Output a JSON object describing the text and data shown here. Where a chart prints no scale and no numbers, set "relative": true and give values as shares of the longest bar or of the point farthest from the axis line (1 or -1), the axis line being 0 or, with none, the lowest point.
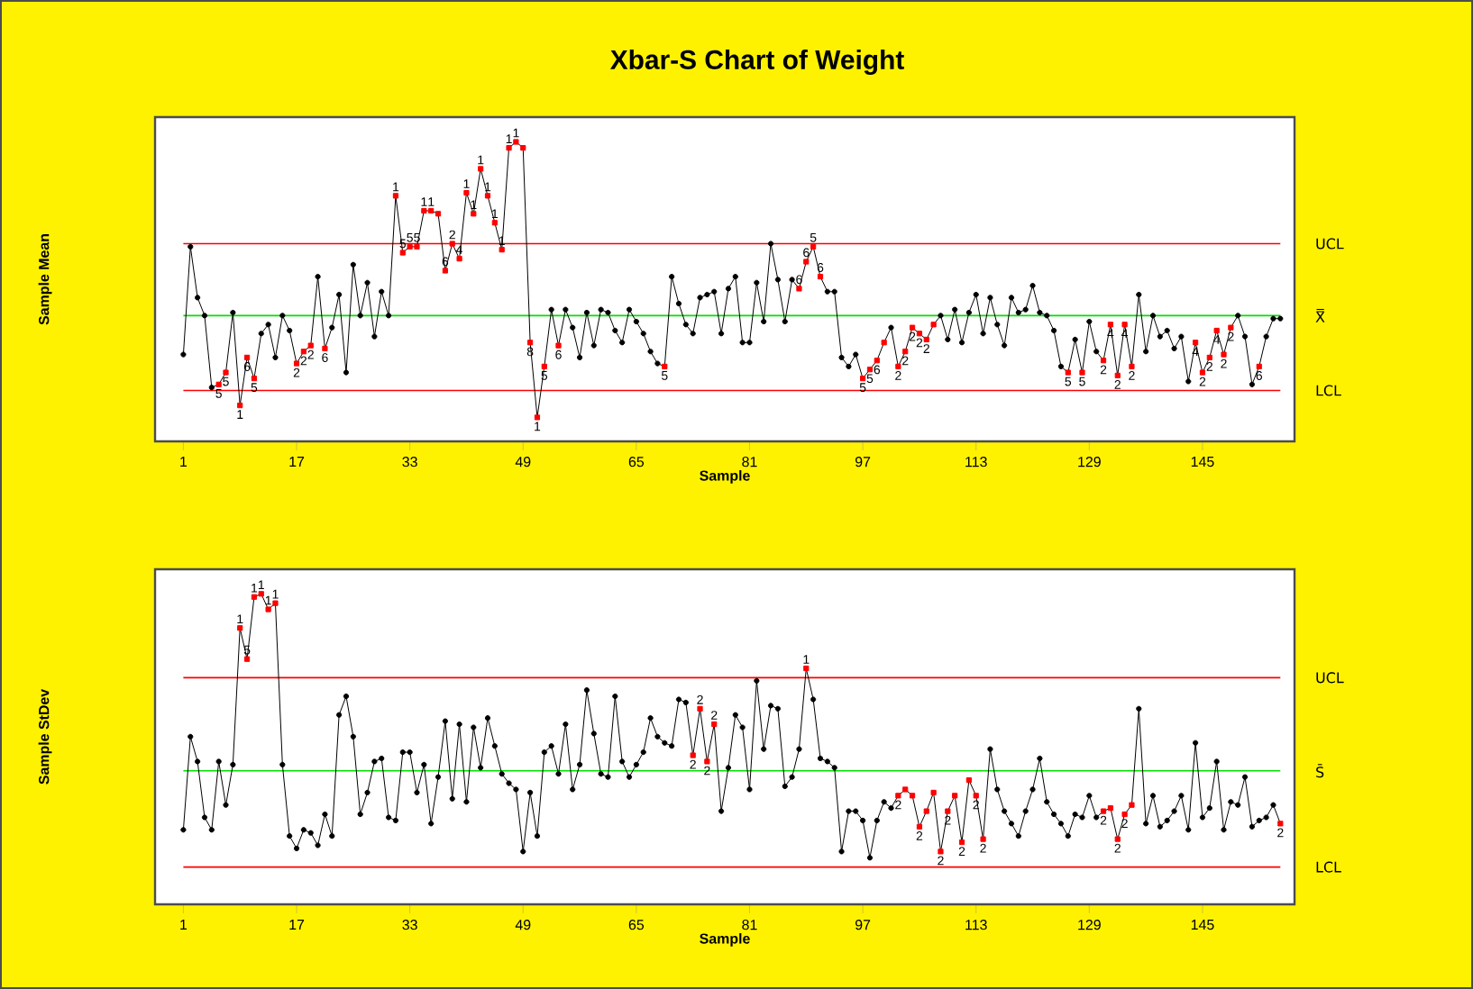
{
  "chart_data": [
    {
      "type": "line",
      "title": "Xbar-S Chart of Weight",
      "xlabel": "Sample",
      "ylabel": "Sample Mean",
      "relative": true,
      "x": [
        1,
        2,
        3,
        4,
        5,
        6,
        7,
        8,
        9,
        10,
        11,
        12,
        13,
        14,
        15,
        16,
        17,
        18,
        19,
        20,
        21,
        22,
        23,
        24,
        25,
        26,
        27,
        28,
        29,
        30,
        31,
        32,
        33,
        34,
        35,
        36,
        37,
        38,
        39,
        40,
        41,
        42,
        43,
        44,
        45,
        46,
        47,
        48,
        49,
        50,
        51,
        52,
        53,
        54,
        55,
        56,
        57,
        58,
        59,
        60,
        61,
        62,
        63,
        64,
        65,
        66,
        67,
        68,
        69,
        70,
        71,
        72,
        73,
        74,
        75,
        76,
        77,
        78,
        79,
        80,
        81,
        82,
        83,
        84,
        85,
        86,
        87,
        88,
        89,
        90,
        91,
        92,
        93,
        94,
        95,
        96,
        97,
        98,
        99,
        100,
        101,
        102,
        103,
        104,
        105,
        106,
        107,
        108,
        109,
        110,
        111,
        112,
        113,
        114,
        115,
        116,
        117,
        118,
        119,
        120,
        121,
        122,
        123,
        124,
        125,
        126,
        127,
        128,
        129,
        130,
        131,
        132,
        133,
        134,
        135,
        136,
        137,
        138,
        139,
        140,
        141,
        142,
        143,
        144,
        145,
        146,
        147,
        148,
        149,
        150,
        151,
        152,
        153,
        154,
        155,
        156
      ],
      "xlim": [
        -3,
        158
      ],
      "xticks": [
        1,
        17,
        33,
        49,
        65,
        81,
        97,
        113,
        129,
        145
      ],
      "series": [
        {
          "color": "#000000",
          "marker": "none",
          "line_style": "solid",
          "values": [
            0.29,
            0.65,
            0.48,
            0.42,
            0.18,
            0.19,
            0.23,
            0.43,
            0.12,
            0.28,
            0.21,
            0.36,
            0.39,
            0.28,
            0.42,
            0.37,
            0.26,
            0.3,
            0.32,
            0.55,
            0.31,
            0.38,
            0.49,
            0.23,
            0.59,
            0.42,
            0.53,
            0.35,
            0.5,
            0.42,
            0.82,
            0.63,
            0.65,
            0.65,
            0.77,
            0.77,
            0.76,
            0.57,
            0.66,
            0.61,
            0.83,
            0.76,
            0.91,
            0.82,
            0.73,
            0.64,
            0.98,
            1.0,
            0.98,
            0.33,
            0.08,
            0.25,
            0.44,
            0.32,
            0.44,
            0.38,
            0.28,
            0.43,
            0.32,
            0.44,
            0.43,
            0.37,
            0.33,
            0.44,
            0.4,
            0.36,
            0.3,
            0.26,
            0.25,
            0.55,
            0.46,
            0.39,
            0.36,
            0.48,
            0.49,
            0.5,
            0.36,
            0.51,
            0.55,
            0.33,
            0.33,
            0.53,
            0.4,
            0.66,
            0.54,
            0.4,
            0.54,
            0.51,
            0.6,
            0.65,
            0.55,
            0.5,
            0.5,
            0.28,
            0.25,
            0.29,
            0.21,
            0.24,
            0.27,
            0.33,
            0.38,
            0.25,
            0.3,
            0.38,
            0.36,
            0.34,
            0.39,
            0.42,
            0.34,
            0.44,
            0.33,
            0.43,
            0.49,
            0.36,
            0.48,
            0.39,
            0.32,
            0.48,
            0.43,
            0.44,
            0.52,
            0.43,
            0.42,
            0.37,
            0.25,
            0.23,
            0.34,
            0.23,
            0.4,
            0.3,
            0.27,
            0.39,
            0.22,
            0.39,
            0.25,
            0.49,
            0.3,
            0.42,
            0.35,
            0.37,
            0.31,
            0.35,
            0.2,
            0.33,
            0.23,
            0.28,
            0.37,
            0.29,
            0.38,
            0.42,
            0.35,
            0.19,
            0.25,
            0.35,
            0.41,
            0.41
          ]
        },
        {
          "type": "scatter",
          "color": "#000000",
          "marker": "circle",
          "x": [
            1,
            2,
            3,
            4,
            5,
            8,
            12,
            13,
            14,
            15,
            16,
            20,
            22,
            23,
            24,
            25,
            26,
            27,
            28,
            29,
            30,
            53,
            55,
            56,
            57,
            58,
            59,
            60,
            61,
            62,
            63,
            64,
            65,
            66,
            67,
            68,
            70,
            71,
            72,
            73,
            74,
            75,
            76,
            77,
            78,
            79,
            80,
            81,
            82,
            83,
            84,
            85,
            86,
            87,
            92,
            93,
            94,
            95,
            96,
            101,
            108,
            109,
            110,
            111,
            112,
            113,
            114,
            115,
            116,
            117,
            118,
            119,
            120,
            121,
            122,
            123,
            124,
            125,
            127,
            129,
            130,
            136,
            137,
            138,
            139,
            140,
            141,
            142,
            143,
            150,
            151,
            152,
            154,
            155,
            156
          ],
          "values": [
            0.29,
            0.65,
            0.48,
            0.42,
            0.18,
            0.43,
            0.36,
            0.39,
            0.28,
            0.42,
            0.37,
            0.55,
            0.38,
            0.49,
            0.23,
            0.59,
            0.42,
            0.53,
            0.35,
            0.5,
            0.42,
            0.44,
            0.44,
            0.38,
            0.28,
            0.43,
            0.32,
            0.44,
            0.43,
            0.37,
            0.33,
            0.44,
            0.4,
            0.36,
            0.3,
            0.26,
            0.55,
            0.46,
            0.39,
            0.36,
            0.48,
            0.49,
            0.5,
            0.36,
            0.51,
            0.55,
            0.33,
            0.33,
            0.53,
            0.4,
            0.66,
            0.54,
            0.4,
            0.54,
            0.5,
            0.5,
            0.28,
            0.25,
            0.29,
            0.38,
            0.42,
            0.34,
            0.44,
            0.33,
            0.43,
            0.49,
            0.36,
            0.48,
            0.39,
            0.32,
            0.48,
            0.43,
            0.44,
            0.52,
            0.43,
            0.42,
            0.37,
            0.25,
            0.34,
            0.4,
            0.3,
            0.49,
            0.3,
            0.42,
            0.35,
            0.37,
            0.31,
            0.35,
            0.2,
            0.42,
            0.35,
            0.19,
            0.35,
            0.41,
            0.41
          ]
        },
        {
          "type": "scatter",
          "color": "#ff0000",
          "marker": "square",
          "x": [
            6,
            7,
            9,
            10,
            11,
            17,
            18,
            19,
            21,
            31,
            32,
            33,
            34,
            35,
            36,
            37,
            38,
            39,
            40,
            41,
            42,
            43,
            44,
            45,
            46,
            47,
            48,
            49,
            50,
            51,
            52,
            54,
            69,
            88,
            89,
            90,
            91,
            97,
            98,
            99,
            100,
            102,
            103,
            104,
            105,
            106,
            107,
            126,
            128,
            131,
            132,
            133,
            134,
            135,
            144,
            145,
            146,
            147,
            148,
            149,
            153
          ],
          "values": [
            0.19,
            0.23,
            0.12,
            0.28,
            0.21,
            0.26,
            0.3,
            0.32,
            0.31,
            0.82,
            0.63,
            0.65,
            0.65,
            0.77,
            0.77,
            0.76,
            0.57,
            0.66,
            0.61,
            0.83,
            0.76,
            0.91,
            0.82,
            0.73,
            0.64,
            0.98,
            1.0,
            0.98,
            0.33,
            0.08,
            0.25,
            0.32,
            0.25,
            0.51,
            0.6,
            0.65,
            0.55,
            0.21,
            0.24,
            0.27,
            0.33,
            0.25,
            0.3,
            0.38,
            0.36,
            0.34,
            0.39,
            0.23,
            0.23,
            0.27,
            0.39,
            0.22,
            0.39,
            0.25,
            0.33,
            0.23,
            0.28,
            0.37,
            0.29,
            0.38,
            0.25
          ]
        }
      ],
      "ref_lines": [
        {
          "axis": "y",
          "value": 0.66,
          "label": "UCL",
          "color": "#ff0000"
        },
        {
          "axis": "y",
          "value": 0.42,
          "label": "X̿",
          "color": "#00e000"
        },
        {
          "axis": "y",
          "value": 0.17,
          "label": "LCL",
          "color": "#ff0000"
        }
      ],
      "annotations": [
        {
          "text": "5",
          "x": 6,
          "y": 0.19
        },
        {
          "text": "5",
          "x": 7,
          "y": 0.23
        },
        {
          "text": "1",
          "x": 9,
          "y": 0.12
        },
        {
          "text": "6",
          "x": 10,
          "y": 0.28
        },
        {
          "text": "5",
          "x": 11,
          "y": 0.21
        },
        {
          "text": "2",
          "x": 17,
          "y": 0.26
        },
        {
          "text": "2",
          "x": 18,
          "y": 0.3
        },
        {
          "text": "2",
          "x": 19,
          "y": 0.32
        },
        {
          "text": "6",
          "x": 21,
          "y": 0.31
        },
        {
          "text": "1",
          "x": 31,
          "y": 0.82
        },
        {
          "text": "5",
          "x": 32,
          "y": 0.63
        },
        {
          "text": "5",
          "x": 33,
          "y": 0.65
        },
        {
          "text": "5",
          "x": 34,
          "y": 0.65
        },
        {
          "text": "1",
          "x": 35,
          "y": 0.77
        },
        {
          "text": "1",
          "x": 36,
          "y": 0.77
        },
        {
          "text": "6",
          "x": 38,
          "y": 0.57
        },
        {
          "text": "2",
          "x": 39,
          "y": 0.66
        },
        {
          "text": "4",
          "x": 40,
          "y": 0.61
        },
        {
          "text": "1",
          "x": 41,
          "y": 0.83
        },
        {
          "text": "1",
          "x": 42,
          "y": 0.76
        },
        {
          "text": "1",
          "x": 43,
          "y": 0.91
        },
        {
          "text": "1",
          "x": 44,
          "y": 0.82
        },
        {
          "text": "1",
          "x": 45,
          "y": 0.73
        },
        {
          "text": "1",
          "x": 46,
          "y": 0.64
        },
        {
          "text": "1",
          "x": 47,
          "y": 0.98
        },
        {
          "text": "1",
          "x": 48,
          "y": 1.0
        },
        {
          "text": "8",
          "x": 50,
          "y": 0.33
        },
        {
          "text": "1",
          "x": 51,
          "y": 0.08
        },
        {
          "text": "5",
          "x": 52,
          "y": 0.25
        },
        {
          "text": "6",
          "x": 54,
          "y": 0.32
        },
        {
          "text": "5",
          "x": 69,
          "y": 0.25
        },
        {
          "text": "6",
          "x": 88,
          "y": 0.51
        },
        {
          "text": "6",
          "x": 89,
          "y": 0.6
        },
        {
          "text": "5",
          "x": 90,
          "y": 0.65
        },
        {
          "text": "6",
          "x": 91,
          "y": 0.55
        },
        {
          "text": "5",
          "x": 97,
          "y": 0.21
        },
        {
          "text": "5",
          "x": 98,
          "y": 0.24
        },
        {
          "text": "6",
          "x": 99,
          "y": 0.27
        },
        {
          "text": "2",
          "x": 102,
          "y": 0.25
        },
        {
          "text": "2",
          "x": 103,
          "y": 0.3
        },
        {
          "text": "2",
          "x": 104,
          "y": 0.38
        },
        {
          "text": "2",
          "x": 105,
          "y": 0.36
        },
        {
          "text": "2",
          "x": 106,
          "y": 0.34
        },
        {
          "text": "5",
          "x": 126,
          "y": 0.23
        },
        {
          "text": "5",
          "x": 128,
          "y": 0.23
        },
        {
          "text": "2",
          "x": 131,
          "y": 0.27
        },
        {
          "text": "4",
          "x": 132,
          "y": 0.39
        },
        {
          "text": "2",
          "x": 133,
          "y": 0.22
        },
        {
          "text": "4",
          "x": 134,
          "y": 0.39
        },
        {
          "text": "2",
          "x": 135,
          "y": 0.25
        },
        {
          "text": "4",
          "x": 144,
          "y": 0.33
        },
        {
          "text": "2",
          "x": 145,
          "y": 0.23
        },
        {
          "text": "2",
          "x": 146,
          "y": 0.28
        },
        {
          "text": "4",
          "x": 147,
          "y": 0.37
        },
        {
          "text": "2",
          "x": 148,
          "y": 0.29
        },
        {
          "text": "2",
          "x": 149,
          "y": 0.38
        },
        {
          "text": "6",
          "x": 153,
          "y": 0.25
        }
      ]
    },
    {
      "type": "line",
      "xlabel": "Sample",
      "ylabel": "Sample StDev",
      "relative": true,
      "x": [
        1,
        2,
        3,
        4,
        5,
        6,
        7,
        8,
        9,
        10,
        11,
        12,
        13,
        14,
        15,
        16,
        17,
        18,
        19,
        20,
        21,
        22,
        23,
        24,
        25,
        26,
        27,
        28,
        29,
        30,
        31,
        32,
        33,
        34,
        35,
        36,
        37,
        38,
        39,
        40,
        41,
        42,
        43,
        44,
        45,
        46,
        47,
        48,
        49,
        50,
        51,
        52,
        53,
        54,
        55,
        56,
        57,
        58,
        59,
        60,
        61,
        62,
        63,
        64,
        65,
        66,
        67,
        68,
        69,
        70,
        71,
        72,
        73,
        74,
        75,
        76,
        77,
        78,
        79,
        80,
        81,
        82,
        83,
        84,
        85,
        86,
        87,
        88,
        89,
        90,
        91,
        92,
        93,
        94,
        95,
        96,
        97,
        98,
        99,
        100,
        101,
        102,
        103,
        104,
        105,
        106,
        107,
        108,
        109,
        110,
        111,
        112,
        113,
        114,
        115,
        116,
        117,
        118,
        119,
        120,
        121,
        122,
        123,
        124,
        125,
        126,
        127,
        128,
        129,
        130,
        131,
        132,
        133,
        134,
        135,
        136,
        137,
        138,
        139,
        140,
        141,
        142,
        143,
        144,
        145,
        146,
        147,
        148,
        149,
        150,
        151,
        152,
        153,
        154,
        155,
        156
      ],
      "xlim": [
        -3,
        158
      ],
      "xticks": [
        1,
        17,
        33,
        49,
        65,
        81,
        97,
        113,
        129,
        145
      ],
      "series": [
        {
          "color": "#000000",
          "marker": "none",
          "line_style": "solid",
          "values": [
            0.24,
            0.54,
            0.46,
            0.28,
            0.24,
            0.46,
            0.32,
            0.45,
            0.89,
            0.79,
            0.99,
            1.0,
            0.95,
            0.97,
            0.45,
            0.22,
            0.18,
            0.24,
            0.23,
            0.19,
            0.29,
            0.22,
            0.61,
            0.67,
            0.54,
            0.29,
            0.36,
            0.46,
            0.47,
            0.28,
            0.27,
            0.49,
            0.49,
            0.36,
            0.45,
            0.26,
            0.41,
            0.59,
            0.34,
            0.58,
            0.33,
            0.57,
            0.44,
            0.6,
            0.51,
            0.42,
            0.39,
            0.37,
            0.17,
            0.36,
            0.22,
            0.49,
            0.51,
            0.42,
            0.58,
            0.37,
            0.45,
            0.69,
            0.55,
            0.42,
            0.41,
            0.67,
            0.46,
            0.41,
            0.45,
            0.49,
            0.6,
            0.54,
            0.52,
            0.51,
            0.66,
            0.65,
            0.48,
            0.63,
            0.46,
            0.58,
            0.3,
            0.44,
            0.61,
            0.57,
            0.37,
            0.72,
            0.5,
            0.64,
            0.63,
            0.38,
            0.41,
            0.5,
            0.76,
            0.66,
            0.47,
            0.46,
            0.44,
            0.17,
            0.3,
            0.3,
            0.27,
            0.15,
            0.27,
            0.33,
            0.31,
            0.35,
            0.37,
            0.35,
            0.25,
            0.3,
            0.36,
            0.17,
            0.3,
            0.35,
            0.2,
            0.4,
            0.35,
            0.21,
            0.5,
            0.37,
            0.3,
            0.26,
            0.22,
            0.3,
            0.37,
            0.47,
            0.33,
            0.29,
            0.26,
            0.22,
            0.29,
            0.28,
            0.35,
            0.28,
            0.3,
            0.31,
            0.21,
            0.29,
            0.32,
            0.63,
            0.26,
            0.35,
            0.25,
            0.27,
            0.3,
            0.35,
            0.24,
            0.52,
            0.28,
            0.31,
            0.46,
            0.24,
            0.33,
            0.32,
            0.41,
            0.25,
            0.27,
            0.28,
            0.32,
            0.26
          ]
        },
        {
          "type": "scatter",
          "color": "#000000",
          "marker": "circle",
          "x": [
            1,
            2,
            3,
            4,
            5,
            6,
            7,
            8,
            15,
            16,
            17,
            18,
            19,
            20,
            21,
            22,
            23,
            24,
            25,
            26,
            27,
            28,
            29,
            30,
            31,
            32,
            33,
            34,
            35,
            36,
            37,
            38,
            39,
            40,
            41,
            42,
            43,
            44,
            45,
            46,
            47,
            48,
            49,
            50,
            51,
            52,
            53,
            54,
            55,
            56,
            57,
            58,
            59,
            60,
            61,
            62,
            63,
            64,
            65,
            66,
            67,
            68,
            69,
            70,
            71,
            72,
            77,
            78,
            79,
            80,
            81,
            82,
            83,
            84,
            85,
            86,
            87,
            88,
            90,
            91,
            92,
            93,
            94,
            95,
            96,
            97,
            98,
            99,
            100,
            101,
            115,
            116,
            117,
            118,
            119,
            120,
            121,
            122,
            123,
            124,
            125,
            126,
            127,
            128,
            129,
            130,
            136,
            137,
            138,
            139,
            140,
            141,
            142,
            143,
            144,
            145,
            146,
            147,
            148,
            149,
            150,
            151,
            152,
            153,
            154,
            155
          ],
          "values": [
            0.24,
            0.54,
            0.46,
            0.28,
            0.24,
            0.46,
            0.32,
            0.45,
            0.45,
            0.22,
            0.18,
            0.24,
            0.23,
            0.19,
            0.29,
            0.22,
            0.61,
            0.67,
            0.54,
            0.29,
            0.36,
            0.46,
            0.47,
            0.28,
            0.27,
            0.49,
            0.49,
            0.36,
            0.45,
            0.26,
            0.41,
            0.59,
            0.34,
            0.58,
            0.33,
            0.57,
            0.44,
            0.6,
            0.51,
            0.42,
            0.39,
            0.37,
            0.17,
            0.36,
            0.22,
            0.49,
            0.51,
            0.42,
            0.58,
            0.37,
            0.45,
            0.69,
            0.55,
            0.42,
            0.41,
            0.67,
            0.46,
            0.41,
            0.45,
            0.49,
            0.6,
            0.54,
            0.52,
            0.51,
            0.66,
            0.65,
            0.3,
            0.44,
            0.61,
            0.57,
            0.37,
            0.72,
            0.5,
            0.64,
            0.63,
            0.38,
            0.41,
            0.5,
            0.66,
            0.47,
            0.46,
            0.44,
            0.17,
            0.3,
            0.3,
            0.27,
            0.15,
            0.27,
            0.33,
            0.31,
            0.5,
            0.37,
            0.3,
            0.26,
            0.22,
            0.3,
            0.37,
            0.47,
            0.33,
            0.29,
            0.26,
            0.22,
            0.29,
            0.28,
            0.35,
            0.28,
            0.63,
            0.26,
            0.35,
            0.25,
            0.27,
            0.3,
            0.35,
            0.24,
            0.52,
            0.28,
            0.31,
            0.46,
            0.24,
            0.33,
            0.32,
            0.41,
            0.25,
            0.27,
            0.28,
            0.32
          ]
        },
        {
          "type": "scatter",
          "color": "#ff0000",
          "marker": "square",
          "x": [
            9,
            10,
            11,
            12,
            13,
            14,
            73,
            74,
            75,
            76,
            89,
            102,
            103,
            104,
            105,
            106,
            107,
            108,
            109,
            110,
            111,
            112,
            113,
            114,
            131,
            132,
            133,
            134,
            135,
            156
          ],
          "values": [
            0.89,
            0.79,
            0.99,
            1.0,
            0.95,
            0.97,
            0.48,
            0.63,
            0.46,
            0.58,
            0.76,
            0.35,
            0.37,
            0.35,
            0.25,
            0.3,
            0.36,
            0.17,
            0.3,
            0.35,
            0.2,
            0.4,
            0.35,
            0.21,
            0.3,
            0.31,
            0.21,
            0.29,
            0.32,
            0.26
          ]
        }
      ],
      "ref_lines": [
        {
          "axis": "y",
          "value": 0.73,
          "label": "UCL",
          "color": "#ff0000"
        },
        {
          "axis": "y",
          "value": 0.43,
          "label": "S̄",
          "color": "#00e000"
        },
        {
          "axis": "y",
          "value": 0.12,
          "label": "LCL",
          "color": "#ff0000"
        }
      ],
      "annotations": [
        {
          "text": "1",
          "x": 9,
          "y": 0.89
        },
        {
          "text": "5",
          "x": 10,
          "y": 0.79
        },
        {
          "text": "1",
          "x": 11,
          "y": 0.99
        },
        {
          "text": "1",
          "x": 12,
          "y": 1.0
        },
        {
          "text": "1",
          "x": 13,
          "y": 0.95
        },
        {
          "text": "1",
          "x": 14,
          "y": 0.97
        },
        {
          "text": "2",
          "x": 73,
          "y": 0.48
        },
        {
          "text": "2",
          "x": 74,
          "y": 0.63
        },
        {
          "text": "2",
          "x": 75,
          "y": 0.46
        },
        {
          "text": "2",
          "x": 76,
          "y": 0.58
        },
        {
          "text": "1",
          "x": 89,
          "y": 0.76
        },
        {
          "text": "2",
          "x": 102,
          "y": 0.35
        },
        {
          "text": "2",
          "x": 105,
          "y": 0.25
        },
        {
          "text": "2",
          "x": 108,
          "y": 0.17
        },
        {
          "text": "2",
          "x": 109,
          "y": 0.3
        },
        {
          "text": "2",
          "x": 111,
          "y": 0.2
        },
        {
          "text": "2",
          "x": 113,
          "y": 0.35
        },
        {
          "text": "2",
          "x": 114,
          "y": 0.21
        },
        {
          "text": "2",
          "x": 131,
          "y": 0.3
        },
        {
          "text": "2",
          "x": 133,
          "y": 0.21
        },
        {
          "text": "2",
          "x": 134,
          "y": 0.29
        },
        {
          "text": "2",
          "x": 156,
          "y": 0.26
        }
      ]
    }
  ]
}
